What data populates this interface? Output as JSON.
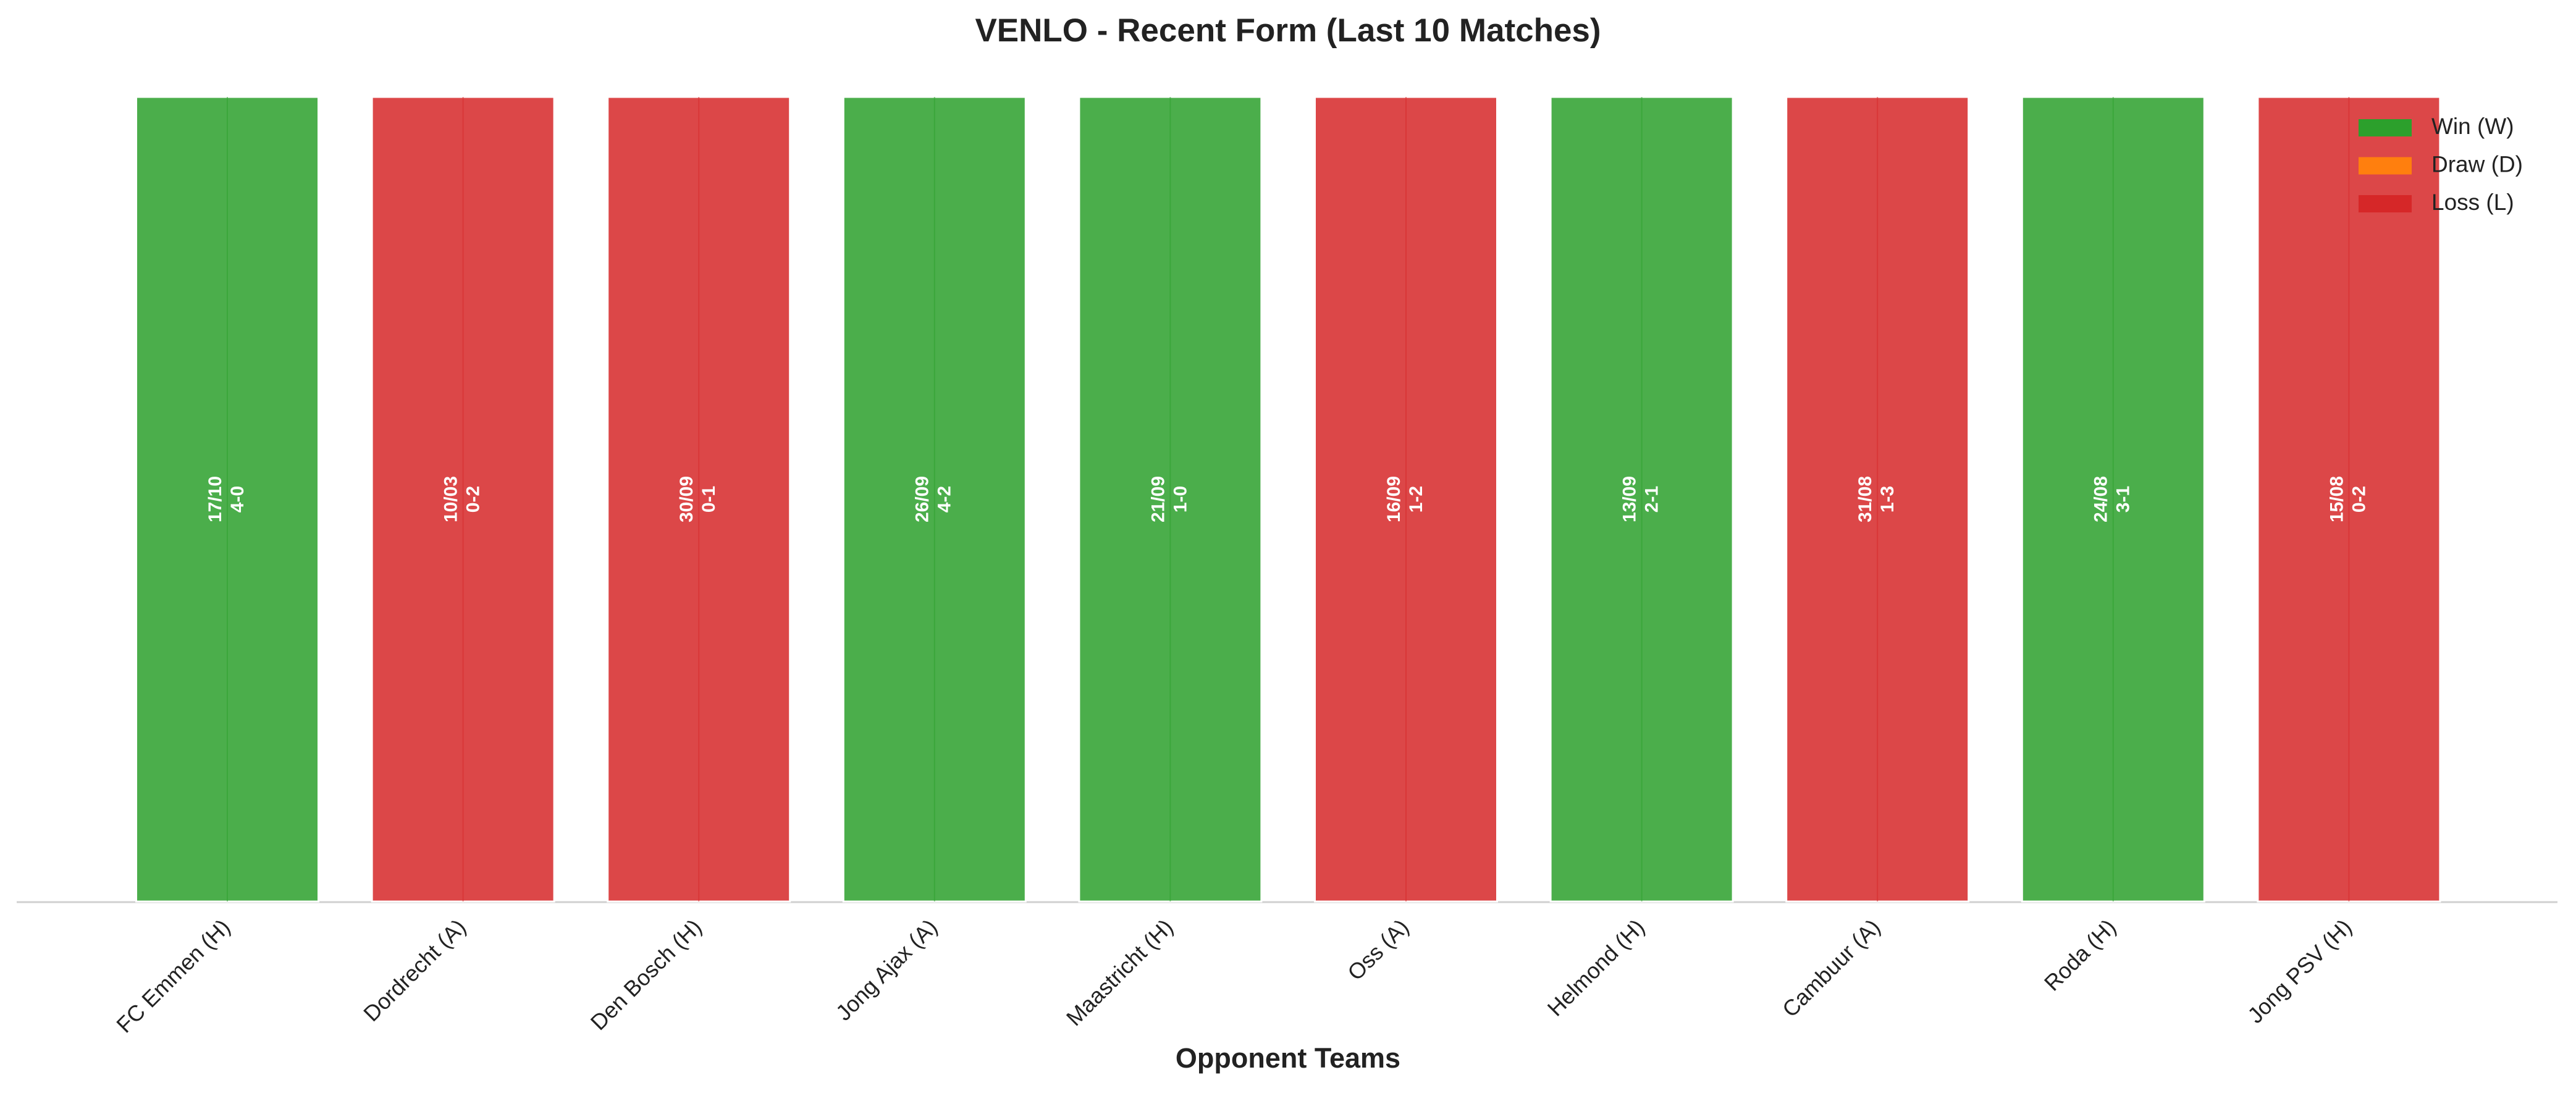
{
  "chart_data": {
    "type": "bar",
    "title": "VENLO - Recent Form (Last 10 Matches)",
    "xlabel": "Opponent Teams",
    "categories": [
      "FC Emmen (H)",
      "Dordrecht (A)",
      "Den Bosch (H)",
      "Jong Ajax (A)",
      "Maastricht (H)",
      "Oss (A)",
      "Helmond (H)",
      "Cambuur (A)",
      "Roda (H)",
      "Jong PSV (H)"
    ],
    "values": [
      1,
      1,
      1,
      1,
      1,
      1,
      1,
      1,
      1,
      1
    ],
    "results": [
      "W",
      "L",
      "L",
      "W",
      "W",
      "L",
      "W",
      "L",
      "W",
      "L"
    ],
    "dates": [
      "17/10",
      "10/03",
      "30/09",
      "26/09",
      "21/09",
      "16/09",
      "13/09",
      "31/08",
      "24/08",
      "15/08"
    ],
    "scores": [
      "4-0",
      "0-2",
      "0-1",
      "4-2",
      "1-0",
      "1-2",
      "2-1",
      "1-3",
      "3-1",
      "0-2"
    ],
    "ylim": [
      0,
      1
    ],
    "legend": [
      {
        "name": "Win (W)",
        "code": "W",
        "color": "#2ca02c"
      },
      {
        "name": "Draw (D)",
        "code": "D",
        "color": "#ff7f0e"
      },
      {
        "name": "Loss (L)",
        "code": "L",
        "color": "#d62728"
      }
    ],
    "legend_position": "upper right"
  }
}
